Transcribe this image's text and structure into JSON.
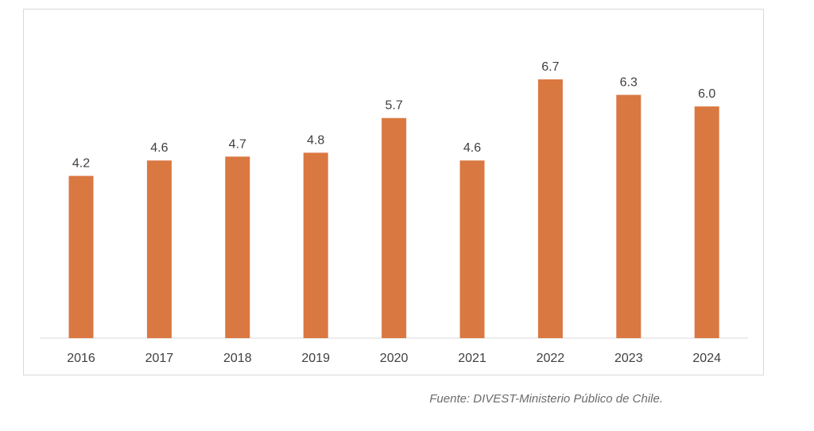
{
  "chart_data": {
    "type": "bar",
    "categories": [
      "2016",
      "2017",
      "2018",
      "2019",
      "2020",
      "2021",
      "2022",
      "2023",
      "2024"
    ],
    "values": [
      4.2,
      4.6,
      4.7,
      4.8,
      5.7,
      4.6,
      6.7,
      6.3,
      6.0
    ],
    "value_labels": [
      "4.2",
      "4.6",
      "4.7",
      "4.8",
      "5.7",
      "4.6",
      "6.7",
      "6.3",
      "6.0"
    ],
    "title": "",
    "xlabel": "",
    "ylabel": "",
    "ylim": [
      0,
      6.7
    ],
    "grid": false,
    "legend": "none",
    "colors": {
      "bar": "#DA7842",
      "axis": "#d9d9d9",
      "label": "#404040"
    }
  },
  "footer": {
    "source": "Fuente: DIVEST-Ministerio Público de Chile."
  }
}
